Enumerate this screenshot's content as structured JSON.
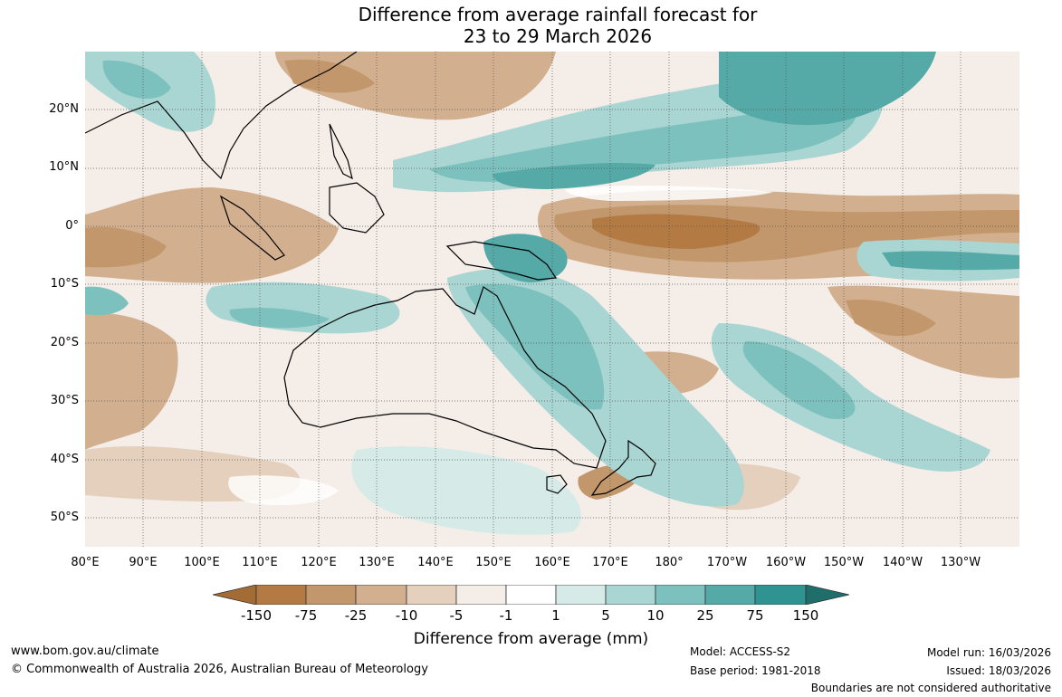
{
  "title": {
    "line1": "Difference from average rainfall forecast for",
    "line2": "23 to 29 March 2026"
  },
  "lat_labels": [
    "20°N",
    "10°N",
    "0°",
    "10°S",
    "20°S",
    "30°S",
    "40°S",
    "50°S"
  ],
  "lon_labels": [
    "80°E",
    "90°E",
    "100°E",
    "110°E",
    "120°E",
    "130°E",
    "140°E",
    "150°E",
    "160°E",
    "170°E",
    "180°",
    "170°W",
    "160°W",
    "150°W",
    "140°W",
    "130°W"
  ],
  "legend": {
    "title": "Difference from average (mm)",
    "ticks": [
      "-150",
      "-75",
      "-25",
      "-10",
      "-5",
      "-1",
      "1",
      "5",
      "10",
      "25",
      "75",
      "150"
    ],
    "colors": [
      "#a46c35",
      "#b37a43",
      "#c2976c",
      "#d2b08f",
      "#e5d0bd",
      "#f4ede8",
      "#ffffff",
      "#d6ebe8",
      "#a9d5d2",
      "#7dc1bf",
      "#55aaa8",
      "#2f9491",
      "#1f6e6c"
    ]
  },
  "footer": {
    "website": "www.bom.gov.au/climate",
    "copyright": "© Commonwealth of Australia 2026, Australian Bureau of Meteorology",
    "model": "Model: ACCESS-S2",
    "base_period": "Base period: 1981-2018",
    "model_run": "Model run: 16/03/2026",
    "issued": "Issued: 18/03/2026",
    "boundaries": "Boundaries are not considered authoritative"
  }
}
